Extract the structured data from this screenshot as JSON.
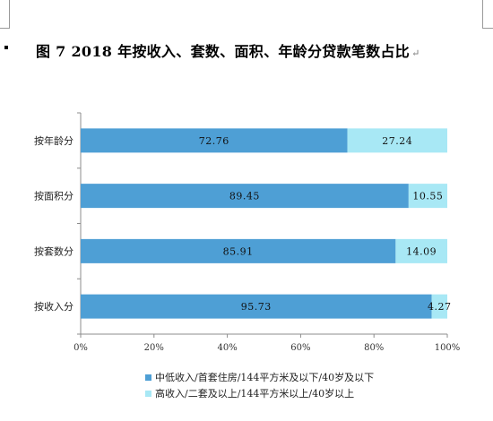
{
  "header": {
    "title": "图 7   2018 年按收入、套数、面积、年龄分贷款笔数占比",
    "paragraph_mark": "↵"
  },
  "chart_data": {
    "type": "bar",
    "orientation": "horizontal",
    "stacked": true,
    "categories": [
      "按年龄分",
      "按面积分",
      "按套数分",
      "按收入分"
    ],
    "series": [
      {
        "name": "中低收入/首套住房/144平方米及以下/40岁及以下",
        "color": "#4e9fd5",
        "values": [
          72.76,
          89.45,
          85.91,
          95.73
        ]
      },
      {
        "name": "高收入/二套及以上/144平方米以上/40岁以上",
        "color": "#a8e8f5",
        "values": [
          27.24,
          10.55,
          14.09,
          4.27
        ]
      }
    ],
    "data_labels": [
      [
        "72.76",
        "89.45",
        "85.91",
        "95.73"
      ],
      [
        "27.24",
        "10.55",
        "14.09",
        "4.27"
      ]
    ],
    "xlim": [
      0,
      100
    ],
    "x_ticks": [
      0,
      20,
      40,
      60,
      80,
      100
    ],
    "x_tick_labels": [
      "0%",
      "20%",
      "40%",
      "60%",
      "80%",
      "100%"
    ],
    "grid": false,
    "legend_position": "bottom"
  }
}
